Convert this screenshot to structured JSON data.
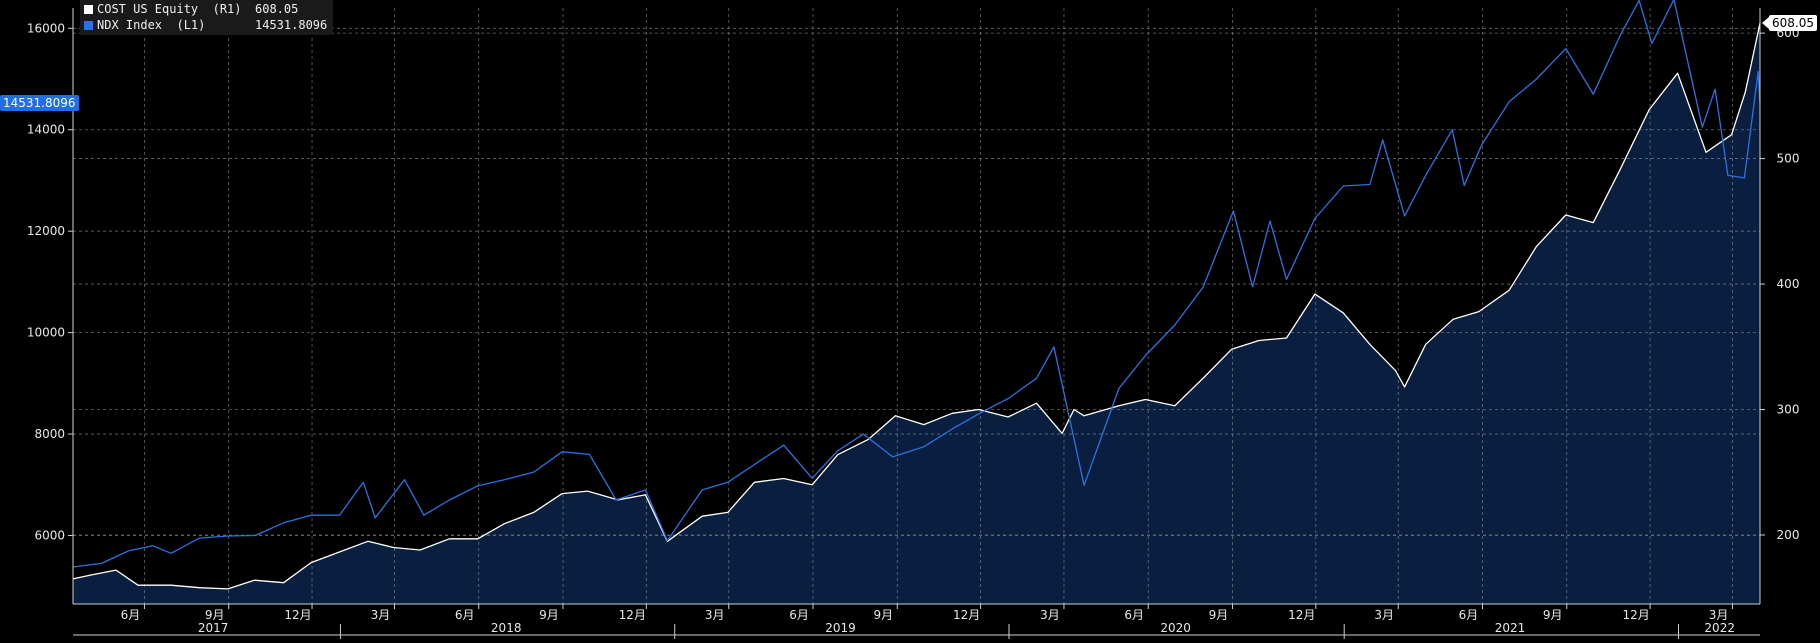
{
  "colors": {
    "background": "#000000",
    "plot_background": "#000000",
    "area_fill": "#0a1f3f",
    "grid": "#8a8a8a",
    "axis_text": "#e8e8e8",
    "cost_line": "#ffffff",
    "ndx_line": "#2a72e4"
  },
  "legend": {
    "items": [
      {
        "name": "COST US Equity  (R1)",
        "value": "608.05",
        "color": "#ffffff"
      },
      {
        "name": "NDX Index  (L1)",
        "value": "14531.8096",
        "color": "#2a72e4"
      }
    ]
  },
  "tags": {
    "left_last_value": "14531.8096",
    "right_last_value": "608.05"
  },
  "chart_data": {
    "type": "area",
    "title": "",
    "x_axis": {
      "type": "date",
      "range": [
        "2017-03-15",
        "2022-03-31"
      ],
      "month_ticks": [
        {
          "date": "2017-06-01",
          "label": "6月"
        },
        {
          "date": "2017-09-01",
          "label": "9月"
        },
        {
          "date": "2017-12-01",
          "label": "12月"
        },
        {
          "date": "2018-03-01",
          "label": "3月"
        },
        {
          "date": "2018-06-01",
          "label": "6月"
        },
        {
          "date": "2018-09-01",
          "label": "9月"
        },
        {
          "date": "2018-12-01",
          "label": "12月"
        },
        {
          "date": "2019-03-01",
          "label": "3月"
        },
        {
          "date": "2019-06-01",
          "label": "6月"
        },
        {
          "date": "2019-09-01",
          "label": "9月"
        },
        {
          "date": "2019-12-01",
          "label": "12月"
        },
        {
          "date": "2020-03-01",
          "label": "3月"
        },
        {
          "date": "2020-06-01",
          "label": "6月"
        },
        {
          "date": "2020-09-01",
          "label": "9月"
        },
        {
          "date": "2020-12-01",
          "label": "12月"
        },
        {
          "date": "2021-03-01",
          "label": "3月"
        },
        {
          "date": "2021-06-01",
          "label": "6月"
        },
        {
          "date": "2021-09-01",
          "label": "9月"
        },
        {
          "date": "2021-12-01",
          "label": "12月"
        },
        {
          "date": "2022-03-01",
          "label": "3月"
        }
      ],
      "year_labels": [
        {
          "label": "2017",
          "center": "2017-08-15"
        },
        {
          "label": "2018",
          "center": "2018-07-01"
        },
        {
          "label": "2019",
          "center": "2019-07-01"
        },
        {
          "label": "2020",
          "center": "2020-07-01"
        },
        {
          "label": "2021",
          "center": "2021-07-01"
        },
        {
          "label": "2022",
          "center": "2022-02-15"
        }
      ],
      "year_dividers": [
        "2018-01-01",
        "2019-01-01",
        "2020-01-01",
        "2021-01-01",
        "2022-01-01"
      ]
    },
    "y_left": {
      "range": [
        4650,
        16400
      ],
      "ticks": [
        6000,
        8000,
        10000,
        12000,
        14000,
        16000
      ]
    },
    "y_right": {
      "range": [
        145,
        620
      ],
      "ticks": [
        200,
        300,
        400,
        500,
        600
      ],
      "tick_labels": [
        "200",
        "300",
        "400",
        "500",
        "600"
      ]
    },
    "grid": true,
    "legend_position": "top-left",
    "series": [
      {
        "name": "NDX Index (L1)",
        "axis": "left",
        "color": "#2a72e4",
        "points": [
          [
            "2017-03-15",
            5380
          ],
          [
            "2017-04-15",
            5450
          ],
          [
            "2017-05-15",
            5700
          ],
          [
            "2017-06-10",
            5800
          ],
          [
            "2017-06-30",
            5650
          ],
          [
            "2017-07-31",
            5950
          ],
          [
            "2017-08-31",
            5990
          ],
          [
            "2017-09-30",
            6000
          ],
          [
            "2017-10-31",
            6250
          ],
          [
            "2017-11-30",
            6400
          ],
          [
            "2017-12-31",
            6400
          ],
          [
            "2018-01-26",
            7050
          ],
          [
            "2018-02-08",
            6350
          ],
          [
            "2018-03-12",
            7100
          ],
          [
            "2018-04-02",
            6400
          ],
          [
            "2018-04-30",
            6700
          ],
          [
            "2018-05-31",
            6980
          ],
          [
            "2018-06-29",
            7100
          ],
          [
            "2018-07-31",
            7250
          ],
          [
            "2018-08-31",
            7650
          ],
          [
            "2018-09-30",
            7600
          ],
          [
            "2018-10-29",
            6700
          ],
          [
            "2018-11-30",
            6900
          ],
          [
            "2018-12-24",
            5900
          ],
          [
            "2019-01-31",
            6900
          ],
          [
            "2019-02-28",
            7050
          ],
          [
            "2019-03-29",
            7400
          ],
          [
            "2019-04-30",
            7780
          ],
          [
            "2019-05-31",
            7130
          ],
          [
            "2019-06-28",
            7670
          ],
          [
            "2019-07-26",
            8000
          ],
          [
            "2019-08-27",
            7550
          ],
          [
            "2019-09-30",
            7750
          ],
          [
            "2019-10-31",
            8100
          ],
          [
            "2019-11-29",
            8400
          ],
          [
            "2019-12-31",
            8700
          ],
          [
            "2020-01-31",
            9100
          ],
          [
            "2020-02-19",
            9720
          ],
          [
            "2020-03-23",
            6990
          ],
          [
            "2020-04-30",
            8900
          ],
          [
            "2020-05-29",
            9550
          ],
          [
            "2020-06-30",
            10150
          ],
          [
            "2020-07-31",
            10900
          ],
          [
            "2020-09-02",
            12400
          ],
          [
            "2020-09-23",
            10900
          ],
          [
            "2020-10-12",
            12200
          ],
          [
            "2020-10-30",
            11050
          ],
          [
            "2020-11-30",
            12250
          ],
          [
            "2020-12-31",
            12890
          ],
          [
            "2021-01-29",
            12920
          ],
          [
            "2021-02-12",
            13800
          ],
          [
            "2021-03-08",
            12300
          ],
          [
            "2021-03-31",
            13100
          ],
          [
            "2021-04-29",
            14000
          ],
          [
            "2021-05-12",
            12900
          ],
          [
            "2021-05-31",
            13700
          ],
          [
            "2021-06-30",
            14550
          ],
          [
            "2021-07-30",
            15000
          ],
          [
            "2021-08-31",
            15600
          ],
          [
            "2021-09-30",
            14700
          ],
          [
            "2021-10-29",
            15850
          ],
          [
            "2021-11-19",
            16550
          ],
          [
            "2021-12-03",
            15700
          ],
          [
            "2021-12-27",
            16570
          ],
          [
            "2022-01-27",
            14050
          ],
          [
            "2022-02-10",
            14800
          ],
          [
            "2022-02-24",
            13100
          ],
          [
            "2022-03-14",
            13050
          ],
          [
            "2022-03-29",
            15150
          ],
          [
            "2022-03-31",
            14531.8096
          ]
        ]
      },
      {
        "name": "COST US Equity (R1)",
        "axis": "right",
        "color": "#ffffff",
        "points": [
          [
            "2017-03-15",
            165
          ],
          [
            "2017-04-03",
            168
          ],
          [
            "2017-05-01",
            172
          ],
          [
            "2017-05-25",
            160
          ],
          [
            "2017-06-30",
            160
          ],
          [
            "2017-07-31",
            158
          ],
          [
            "2017-08-31",
            157
          ],
          [
            "2017-09-29",
            164
          ],
          [
            "2017-10-31",
            162
          ],
          [
            "2017-11-30",
            178
          ],
          [
            "2017-12-29",
            186
          ],
          [
            "2018-01-31",
            195
          ],
          [
            "2018-02-28",
            190
          ],
          [
            "2018-03-29",
            188
          ],
          [
            "2018-04-30",
            197
          ],
          [
            "2018-05-31",
            197
          ],
          [
            "2018-06-29",
            209
          ],
          [
            "2018-07-31",
            218
          ],
          [
            "2018-08-31",
            233
          ],
          [
            "2018-09-28",
            235
          ],
          [
            "2018-10-31",
            228
          ],
          [
            "2018-11-30",
            232
          ],
          [
            "2018-12-24",
            195
          ],
          [
            "2019-01-31",
            215
          ],
          [
            "2019-02-28",
            218
          ],
          [
            "2019-03-29",
            242
          ],
          [
            "2019-04-30",
            245
          ],
          [
            "2019-05-31",
            240
          ],
          [
            "2019-06-28",
            264
          ],
          [
            "2019-07-31",
            276
          ],
          [
            "2019-08-30",
            295
          ],
          [
            "2019-09-30",
            288
          ],
          [
            "2019-10-31",
            297
          ],
          [
            "2019-11-29",
            300
          ],
          [
            "2019-12-31",
            294
          ],
          [
            "2020-01-31",
            305
          ],
          [
            "2020-02-28",
            281
          ],
          [
            "2020-03-12",
            300
          ],
          [
            "2020-03-23",
            295
          ],
          [
            "2020-04-30",
            303
          ],
          [
            "2020-05-29",
            308
          ],
          [
            "2020-06-30",
            303
          ],
          [
            "2020-07-31",
            325
          ],
          [
            "2020-08-31",
            348
          ],
          [
            "2020-09-30",
            355
          ],
          [
            "2020-10-30",
            357
          ],
          [
            "2020-11-30",
            392
          ],
          [
            "2020-12-31",
            377
          ],
          [
            "2021-01-29",
            352
          ],
          [
            "2021-02-26",
            331
          ],
          [
            "2021-03-08",
            318
          ],
          [
            "2021-03-31",
            352
          ],
          [
            "2021-04-30",
            372
          ],
          [
            "2021-05-28",
            378
          ],
          [
            "2021-06-30",
            395
          ],
          [
            "2021-07-30",
            430
          ],
          [
            "2021-08-31",
            455
          ],
          [
            "2021-09-30",
            449
          ],
          [
            "2021-10-29",
            491
          ],
          [
            "2021-11-30",
            539
          ],
          [
            "2021-12-31",
            568
          ],
          [
            "2022-01-31",
            505
          ],
          [
            "2022-02-28",
            519
          ],
          [
            "2022-03-15",
            553
          ],
          [
            "2022-03-31",
            608.05
          ]
        ]
      }
    ]
  }
}
